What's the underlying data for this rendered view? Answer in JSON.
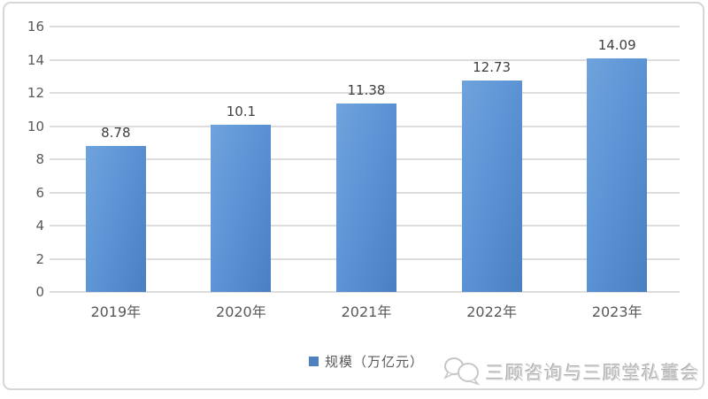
{
  "chart_data": {
    "type": "bar",
    "categories": [
      "2019年",
      "2020年",
      "2021年",
      "2022年",
      "2023年"
    ],
    "values": [
      8.78,
      10.1,
      11.38,
      12.73,
      14.09
    ],
    "value_labels": [
      "8.78",
      "10.1",
      "11.38",
      "12.73",
      "14.09"
    ],
    "title": "",
    "xlabel": "",
    "ylabel": "",
    "ylim": [
      0,
      16
    ],
    "yticks": [
      0,
      2,
      4,
      6,
      8,
      10,
      12,
      14,
      16
    ],
    "grid": true,
    "legend": {
      "label": "规模（万亿元）",
      "position": "bottom"
    }
  },
  "watermark": {
    "logo": "speech-bubbles-icon",
    "text": "三顾咨询与三顾堂私董会"
  },
  "colors": {
    "bar_light": "#6FA3DC",
    "bar_mid": "#5C94D6",
    "bar_dark": "#4A80C2",
    "legend_marker": "#4E81BD",
    "grid_line": "#DDDDDD",
    "axis_text": "#595959",
    "value_text": "#3F3F3F",
    "watermark_text": "#D8D8D8",
    "frame_border": "#D6D6D6"
  }
}
